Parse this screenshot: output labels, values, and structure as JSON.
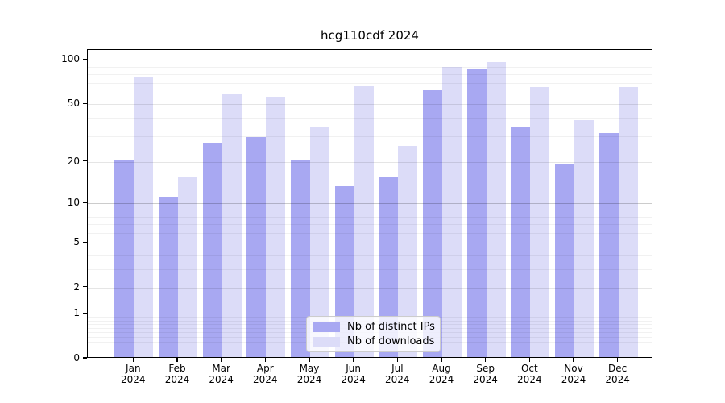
{
  "chart_data": {
    "type": "bar",
    "title": "hcg110cdf 2024",
    "yscale": "log1p",
    "ylim": [
      0,
      117
    ],
    "yticks": [
      0,
      1,
      2,
      5,
      10,
      20,
      50,
      100
    ],
    "decade_ticks": [
      1,
      10,
      100
    ],
    "minor_ticks": [
      0.2,
      0.3,
      0.4,
      0.5,
      0.6,
      0.7,
      0.8,
      0.9,
      3,
      4,
      6,
      7,
      8,
      9,
      30,
      40,
      60,
      70,
      80,
      90
    ],
    "grid": true,
    "categories": [
      "Jan",
      "Feb",
      "Mar",
      "Apr",
      "May",
      "Jun",
      "Jul",
      "Aug",
      "Sep",
      "Oct",
      "Nov",
      "Dec"
    ],
    "category_sublabel": "2024",
    "xlabel": "",
    "ylabel": "",
    "series": [
      {
        "name": "Nb of distinct IPs",
        "color": "#a8a8f2",
        "values": [
          20,
          11,
          26,
          29,
          20,
          13,
          15,
          61,
          85,
          34,
          19,
          31
        ]
      },
      {
        "name": "Nb of downloads",
        "color": "#dcdcf8",
        "values": [
          75,
          15,
          57,
          55,
          34,
          65,
          25,
          88,
          95,
          64,
          38,
          64
        ]
      }
    ],
    "legend": {
      "position": "lower center",
      "items": [
        "Nb of distinct IPs",
        "Nb of downloads"
      ]
    }
  },
  "colors": {
    "bar_dark": "#a8a8f2",
    "bar_light": "#dcdcf8",
    "grid_decade": "rgba(0,0,0,0.20)",
    "grid_labeled": "rgba(0,0,0,0.10)",
    "grid_minor": "rgba(0,0,0,0.055)",
    "axis": "#000000",
    "background": "#ffffff"
  }
}
